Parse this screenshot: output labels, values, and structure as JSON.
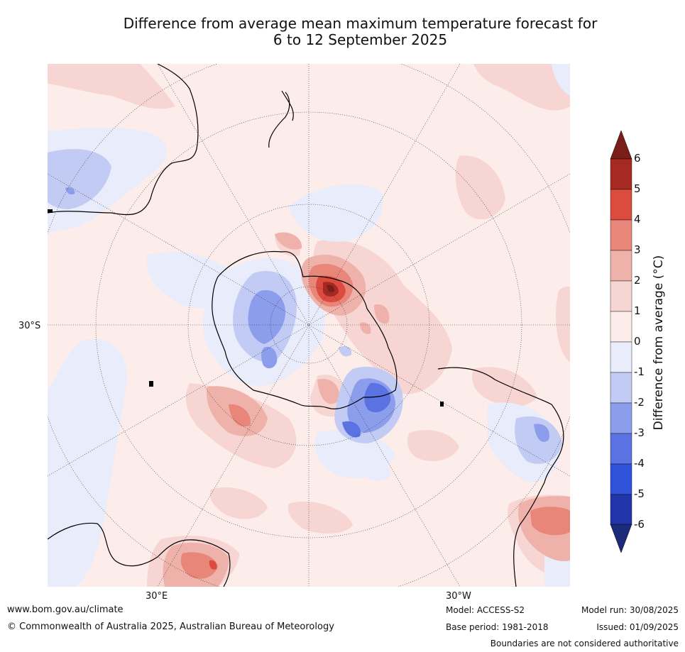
{
  "title_line1": "Difference from average mean maximum temperature forecast for",
  "title_line2": "6 to 12 September 2025",
  "map": {
    "lat_label": "30°S",
    "lon_label_east": "30°E",
    "lon_label_west": "30°W",
    "projection": "south-polar-stereographic"
  },
  "colorbar": {
    "title": "Difference from average (°C)",
    "ticks": [
      "6",
      "5",
      "4",
      "3",
      "2",
      "1",
      "0",
      "-1",
      "-2",
      "-3",
      "-4",
      "-5",
      "-6"
    ],
    "colors": [
      "#7a1e1a",
      "#a72a22",
      "#db4c3f",
      "#e8867a",
      "#eeb2aa",
      "#f6d5d2",
      "#fcecea",
      "#e8ecfb",
      "#c2cbf3",
      "#8b9deb",
      "#5b73e2",
      "#2f52d9",
      "#2135a8",
      "#1b2a7b"
    ]
  },
  "footer": {
    "website": "www.bom.gov.au/climate",
    "copyright": "© Commonwealth of Australia 2025, Australian Bureau of Meteorology",
    "model": "Model: ACCESS-S2",
    "base_period": "Base period: 1981-2018",
    "model_run": "Model run: 30/08/2025",
    "issued": "Issued: 01/09/2025",
    "disclaimer": "Boundaries are not considered authoritative"
  }
}
